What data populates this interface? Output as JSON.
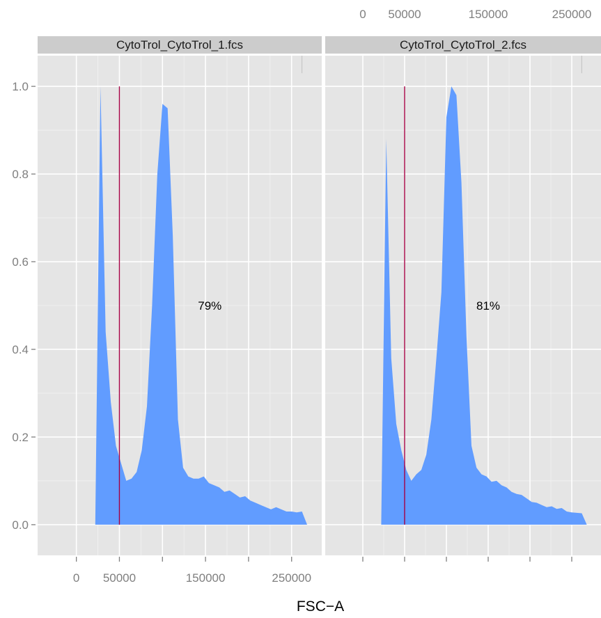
{
  "chart_data": {
    "type": "area",
    "xlabel": "FSC−A",
    "ylabel": "",
    "xlim": [
      -45000,
      285000
    ],
    "ylim": [
      -0.07,
      1.07
    ],
    "x_ticks": [
      0,
      50000,
      100000,
      150000,
      200000,
      250000
    ],
    "x_tick_labels": [
      "0",
      "50000",
      "150000",
      "250000"
    ],
    "x_tick_label_values": [
      0,
      50000,
      150000,
      250000
    ],
    "y_ticks": [
      0.0,
      0.2,
      0.4,
      0.6,
      0.8,
      1.0
    ],
    "y_tick_labels": [
      "0.0",
      "0.2",
      "0.4",
      "0.6",
      "0.8",
      "1.0"
    ],
    "grid": true,
    "fill_color": "#619cff",
    "gate_color": "#a50044",
    "panel_bg": "#e5e5e5",
    "strip_bg": "#cccccc",
    "panels": [
      {
        "name": "CytoTrol_CytoTrol_1.fcs",
        "gate_x": 50000,
        "label": "79%",
        "label_x": 155000,
        "label_y": 0.5,
        "x": [
          22000,
          22000,
          28000,
          34000,
          40000,
          46000,
          52000,
          58000,
          64000,
          70000,
          76000,
          82000,
          88000,
          94000,
          100000,
          106000,
          112000,
          118000,
          124000,
          130000,
          136000,
          142000,
          148000,
          154000,
          160000,
          166000,
          172000,
          178000,
          184000,
          190000,
          196000,
          202000,
          208000,
          214000,
          220000,
          226000,
          232000,
          238000,
          244000,
          250000,
          256000,
          262000,
          268000,
          268000
        ],
        "y": [
          0.0,
          0.0,
          1.0,
          0.44,
          0.28,
          0.18,
          0.14,
          0.1,
          0.105,
          0.12,
          0.17,
          0.27,
          0.5,
          0.8,
          0.96,
          0.95,
          0.66,
          0.24,
          0.13,
          0.11,
          0.105,
          0.105,
          0.11,
          0.095,
          0.09,
          0.085,
          0.075,
          0.078,
          0.07,
          0.062,
          0.065,
          0.055,
          0.05,
          0.045,
          0.04,
          0.035,
          0.04,
          0.035,
          0.03,
          0.03,
          0.028,
          0.03,
          0.0,
          0.0
        ]
      },
      {
        "name": "CytoTrol_CytoTrol_2.fcs",
        "gate_x": 50000,
        "label": "81%",
        "label_x": 150000,
        "label_y": 0.5,
        "x": [
          22000,
          22000,
          28000,
          34000,
          40000,
          46000,
          52000,
          58000,
          64000,
          70000,
          76000,
          82000,
          88000,
          94000,
          100000,
          106000,
          112000,
          118000,
          124000,
          130000,
          136000,
          142000,
          148000,
          154000,
          160000,
          166000,
          172000,
          178000,
          184000,
          190000,
          196000,
          202000,
          208000,
          214000,
          220000,
          226000,
          232000,
          238000,
          244000,
          250000,
          256000,
          262000,
          268000,
          268000
        ],
        "y": [
          0.0,
          0.0,
          0.88,
          0.38,
          0.23,
          0.17,
          0.125,
          0.1,
          0.115,
          0.125,
          0.16,
          0.24,
          0.38,
          0.53,
          0.93,
          1.0,
          0.98,
          0.78,
          0.43,
          0.18,
          0.13,
          0.115,
          0.11,
          0.098,
          0.1,
          0.09,
          0.085,
          0.075,
          0.07,
          0.068,
          0.06,
          0.052,
          0.05,
          0.045,
          0.04,
          0.042,
          0.036,
          0.038,
          0.03,
          0.028,
          0.027,
          0.026,
          0.0,
          0.0
        ]
      }
    ]
  }
}
